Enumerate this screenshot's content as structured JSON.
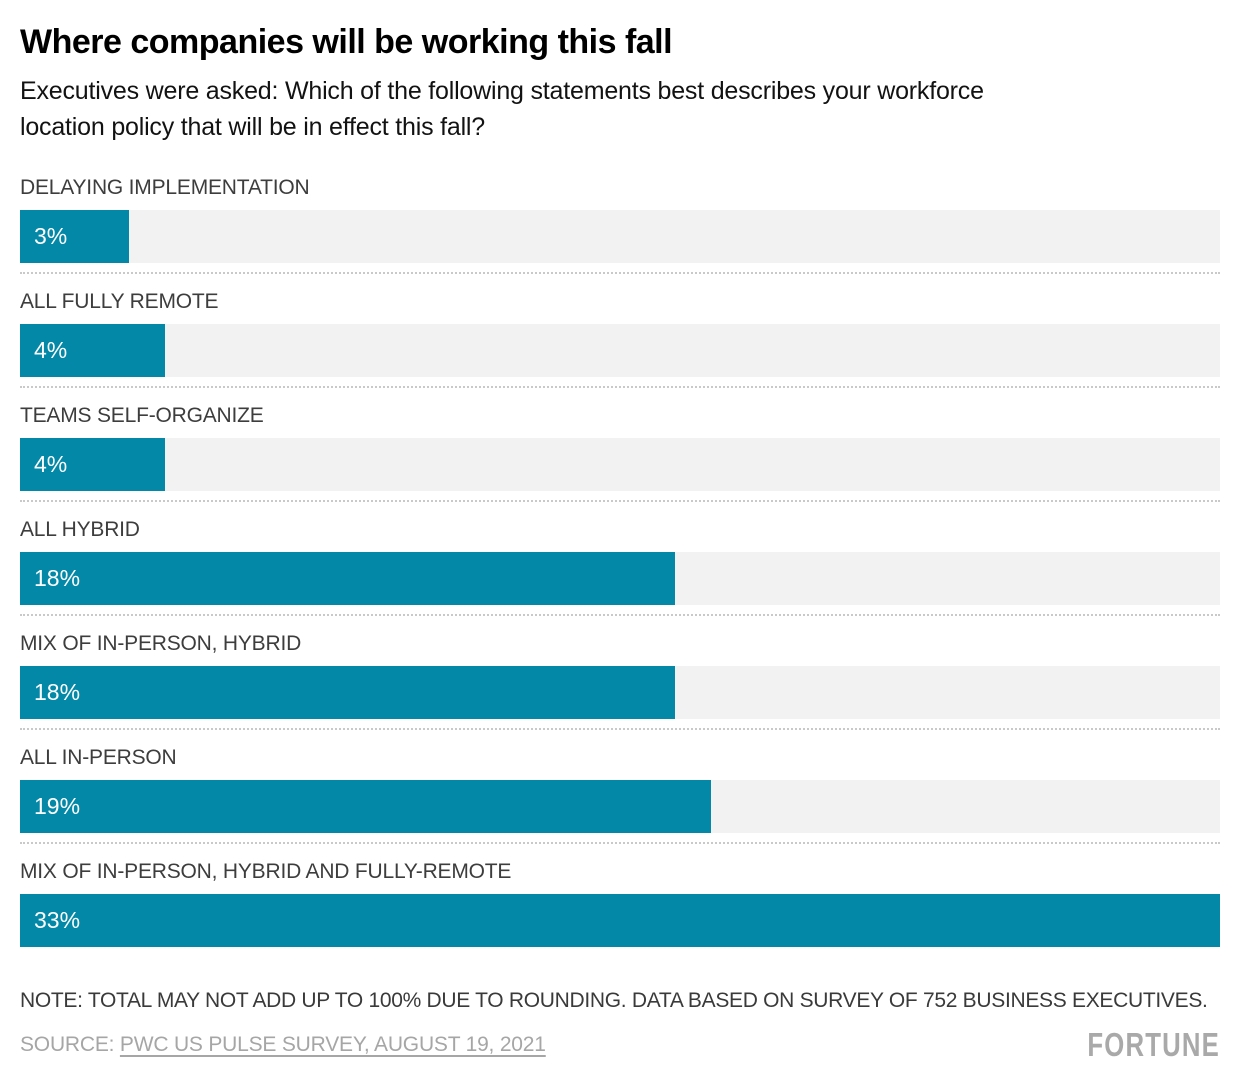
{
  "header": {
    "title": "Where companies will be working this fall",
    "subtitle": "Executives were asked: Which of the following statements best describes your workforce location policy that will be in effect this fall?"
  },
  "chart_data": {
    "type": "bar",
    "orientation": "horizontal",
    "categories": [
      "DELAYING IMPLEMENTATION",
      "ALL FULLY REMOTE",
      "TEAMS SELF-ORGANIZE",
      "ALL HYBRID",
      "MIX OF IN-PERSON, HYBRID",
      "ALL IN-PERSON",
      "MIX OF IN-PERSON, HYBRID AND FULLY-REMOTE"
    ],
    "values": [
      3,
      4,
      4,
      18,
      18,
      19,
      33
    ],
    "value_labels": [
      "3%",
      "4%",
      "4%",
      "18%",
      "18%",
      "19%",
      "33%"
    ],
    "xlim": [
      0,
      33
    ],
    "grid": false,
    "legend": false,
    "bar_color": "#0388a8",
    "track_color": "#f2f2f2",
    "unit": "percent"
  },
  "footer": {
    "note": "NOTE: TOTAL MAY NOT ADD UP TO 100% DUE TO ROUNDING. DATA BASED ON SURVEY OF 752 BUSINESS EXECUTIVES.",
    "source_prefix": "SOURCE: ",
    "source_link": "PWC US PULSE SURVEY, AUGUST 19, 2021",
    "logo": "FORTUNE"
  }
}
